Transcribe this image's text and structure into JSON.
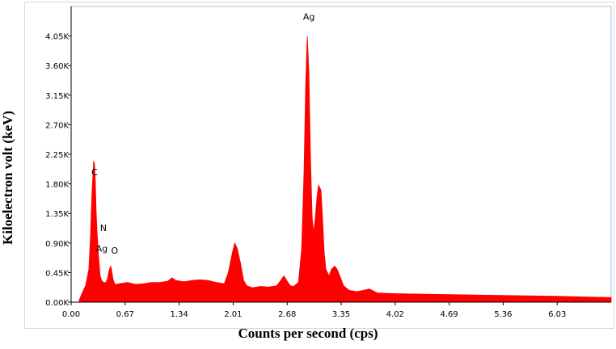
{
  "chart_data": {
    "type": "area",
    "xlabel": "Counts per second (cps)",
    "ylabel": "Kiloelectron volt (keV)",
    "xlim": [
      0,
      6.7
    ],
    "ylim": [
      0,
      4.5
    ],
    "x_ticks": [
      "0.00",
      "0.67",
      "1.34",
      "2.01",
      "2.68",
      "3.35",
      "4.02",
      "4.69",
      "5.36",
      "6.03"
    ],
    "y_ticks": [
      "0.00K",
      "0.45K",
      "0.90K",
      "1.35K",
      "1.80K",
      "2.25K",
      "2.70K",
      "3.15K",
      "3.60K",
      "4.05K"
    ],
    "series": [
      {
        "color": "#ff0000",
        "x": [
          0.1,
          0.14,
          0.18,
          0.22,
          0.24,
          0.26,
          0.28,
          0.29,
          0.3,
          0.31,
          0.32,
          0.34,
          0.36,
          0.38,
          0.4,
          0.43,
          0.45,
          0.47,
          0.49,
          0.5,
          0.52,
          0.54,
          0.56,
          0.6,
          0.7,
          0.8,
          0.9,
          1.0,
          1.1,
          1.2,
          1.25,
          1.3,
          1.4,
          1.5,
          1.6,
          1.7,
          1.8,
          1.9,
          1.95,
          2.0,
          2.03,
          2.06,
          2.1,
          2.14,
          2.18,
          2.25,
          2.35,
          2.45,
          2.55,
          2.6,
          2.64,
          2.68,
          2.72,
          2.76,
          2.82,
          2.86,
          2.89,
          2.91,
          2.93,
          2.95,
          2.97,
          2.99,
          3.01,
          3.03,
          3.05,
          3.07,
          3.1,
          3.12,
          3.14,
          3.16,
          3.18,
          3.2,
          3.23,
          3.27,
          3.3,
          3.34,
          3.38,
          3.45,
          3.55,
          3.7,
          3.8,
          4.0,
          4.4,
          5.0,
          5.5,
          6.0,
          6.35,
          6.7
        ],
        "y": [
          0.03,
          0.15,
          0.25,
          0.5,
          1.0,
          1.7,
          2.15,
          2.1,
          1.85,
          1.4,
          1.1,
          0.7,
          0.4,
          0.33,
          0.3,
          0.3,
          0.35,
          0.48,
          0.55,
          0.5,
          0.35,
          0.28,
          0.27,
          0.28,
          0.3,
          0.27,
          0.28,
          0.3,
          0.3,
          0.32,
          0.37,
          0.33,
          0.31,
          0.33,
          0.34,
          0.33,
          0.3,
          0.28,
          0.45,
          0.75,
          0.9,
          0.82,
          0.6,
          0.33,
          0.25,
          0.22,
          0.24,
          0.23,
          0.25,
          0.33,
          0.4,
          0.32,
          0.25,
          0.24,
          0.3,
          0.8,
          2.0,
          3.3,
          4.05,
          3.5,
          2.2,
          1.3,
          1.05,
          1.3,
          1.6,
          1.78,
          1.7,
          1.25,
          0.75,
          0.5,
          0.45,
          0.4,
          0.5,
          0.55,
          0.5,
          0.38,
          0.25,
          0.18,
          0.16,
          0.2,
          0.14,
          0.13,
          0.12,
          0.11,
          0.1,
          0.09,
          0.08,
          0.07
        ]
      }
    ],
    "annotations": [
      {
        "text": "Ag",
        "x": 2.95,
        "y": 4.3
      },
      {
        "text": "C",
        "x": 0.29,
        "y": 1.93
      },
      {
        "text": "N",
        "x": 0.4,
        "y": 1.08
      },
      {
        "text": "Ag",
        "x": 0.38,
        "y": 0.77
      },
      {
        "text": "O",
        "x": 0.54,
        "y": 0.74
      }
    ]
  }
}
